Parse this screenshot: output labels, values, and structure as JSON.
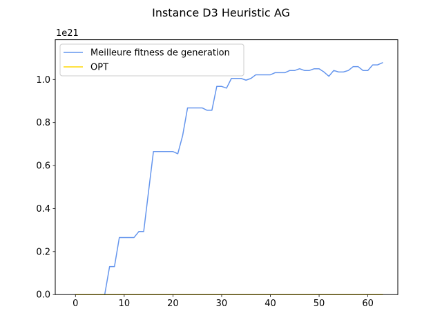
{
  "chart_data": {
    "type": "line",
    "title": "Instance D3 Heuristic AG",
    "xlabel": "",
    "ylabel": "",
    "y_offset_label": "1e21",
    "xlim": [
      -4.15,
      66.15
    ],
    "ylim": [
      0.0,
      1.185
    ],
    "x_ticks": [
      0,
      10,
      20,
      30,
      40,
      50,
      60
    ],
    "y_ticks": [
      0.0,
      0.2,
      0.4,
      0.6,
      0.8,
      1.0
    ],
    "y_tick_labels": [
      "0.0",
      "0.2",
      "0.4",
      "0.6",
      "0.8",
      "1.0"
    ],
    "grid": false,
    "legend_position": "top-left",
    "series": [
      {
        "name": "Meilleure fitness de generation",
        "color": "#6495ED",
        "x": [
          0,
          1,
          2,
          3,
          4,
          5,
          6,
          7,
          8,
          9,
          10,
          11,
          12,
          13,
          14,
          15,
          16,
          17,
          18,
          19,
          20,
          21,
          22,
          23,
          24,
          25,
          26,
          27,
          28,
          29,
          30,
          31,
          32,
          33,
          34,
          35,
          36,
          37,
          38,
          39,
          40,
          41,
          42,
          43,
          44,
          45,
          46,
          47,
          48,
          49,
          50,
          51,
          52,
          53,
          54,
          55,
          56,
          57,
          58,
          59,
          60,
          61,
          62,
          63
        ],
        "values": [
          0.0,
          0.0,
          0.0,
          0.0,
          0.0,
          0.0,
          0.0,
          0.13,
          0.13,
          0.265,
          0.265,
          0.265,
          0.265,
          0.293,
          0.293,
          0.48,
          0.665,
          0.665,
          0.665,
          0.665,
          0.665,
          0.655,
          0.74,
          0.868,
          0.868,
          0.868,
          0.868,
          0.857,
          0.857,
          0.968,
          0.968,
          0.96,
          1.005,
          1.005,
          1.005,
          0.997,
          1.005,
          1.022,
          1.022,
          1.022,
          1.022,
          1.032,
          1.032,
          1.032,
          1.042,
          1.042,
          1.05,
          1.042,
          1.042,
          1.05,
          1.05,
          1.035,
          1.015,
          1.042,
          1.035,
          1.035,
          1.042,
          1.06,
          1.06,
          1.042,
          1.042,
          1.068,
          1.068,
          1.078
        ]
      },
      {
        "name": "OPT",
        "color": "#FFD700",
        "x": [
          0,
          1,
          2,
          3,
          4,
          5,
          6,
          7,
          8,
          9,
          10,
          11,
          12,
          13,
          14,
          15,
          16,
          17,
          18,
          19,
          20,
          21,
          22,
          23,
          24,
          25,
          26,
          27,
          28,
          29,
          30,
          31,
          32,
          33,
          34,
          35,
          36,
          37,
          38,
          39,
          40,
          41,
          42,
          43,
          44,
          45,
          46,
          47,
          48,
          49,
          50,
          51,
          52,
          53,
          54,
          55,
          56,
          57,
          58,
          59,
          60,
          61,
          62,
          63
        ],
        "values": [
          0,
          0,
          0,
          0,
          0,
          0,
          0,
          0,
          0,
          0,
          0,
          0,
          0,
          0,
          0,
          0,
          0,
          0,
          0,
          0,
          0,
          0,
          0,
          0,
          0,
          0,
          0,
          0,
          0,
          0,
          0,
          0,
          0,
          0,
          0,
          0,
          0,
          0,
          0,
          0,
          0,
          0,
          0,
          0,
          0,
          0,
          0,
          0,
          0,
          0,
          0,
          0,
          0,
          0,
          0,
          0,
          0,
          0,
          0,
          0,
          0,
          0,
          0,
          0
        ]
      }
    ]
  }
}
